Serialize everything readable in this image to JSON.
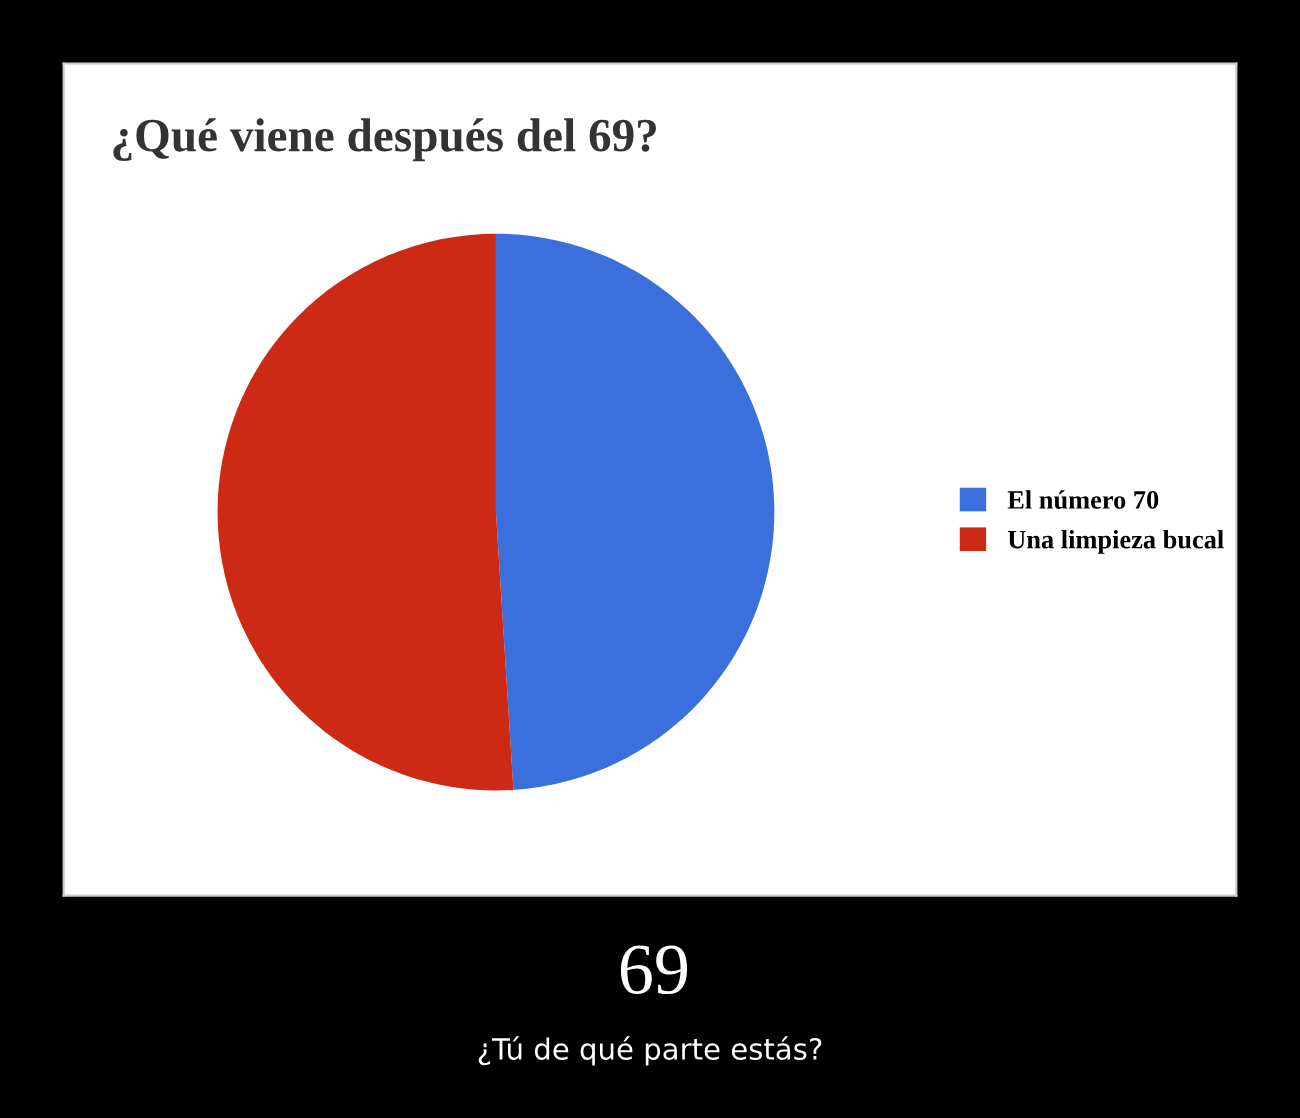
{
  "chart_data": {
    "type": "pie",
    "title": "¿Qué viene después del 69?",
    "categories": [
      "El número 70",
      "Una limpieza bucal"
    ],
    "values": [
      49,
      51
    ],
    "colors": [
      "#3a6fdc",
      "#cc2a14"
    ],
    "legend": "right",
    "annotations": [
      "69",
      "¿Tú de qué parte estás?"
    ]
  }
}
